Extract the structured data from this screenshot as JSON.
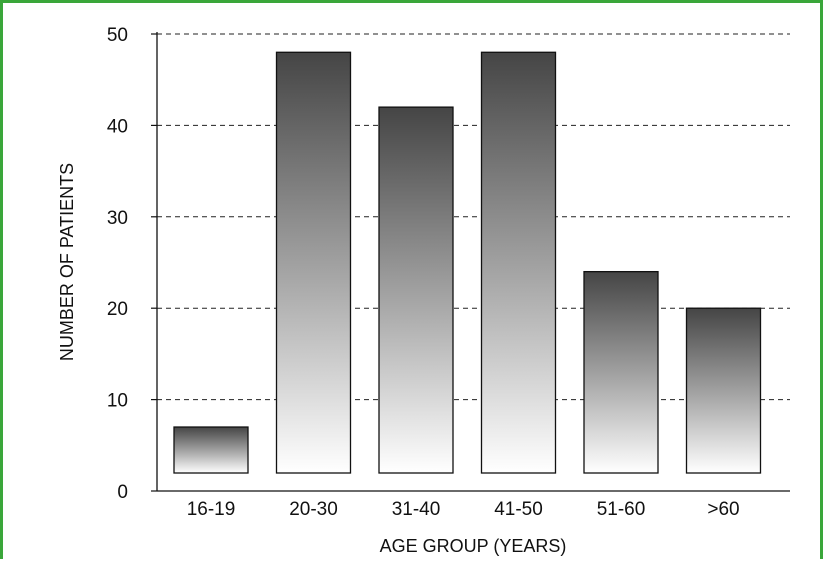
{
  "chart_data": {
    "type": "bar",
    "categories": [
      "16-19",
      "20-30",
      "31-40",
      "41-50",
      "51-60",
      ">60"
    ],
    "values": [
      7,
      48,
      42,
      48,
      24,
      20
    ],
    "xlabel": "AGE GROUP (YEARS)",
    "ylabel": "NUMBER OF PATIENTS",
    "ylim": [
      0,
      50
    ],
    "yticks": [
      0,
      10,
      20,
      30,
      40,
      50
    ],
    "grid": "horizontal dashed",
    "legend": "none",
    "colors": {
      "bar_top": "#4a4a4a",
      "bar_bottom": "#ffffff",
      "frame": "#3aa63a"
    }
  }
}
